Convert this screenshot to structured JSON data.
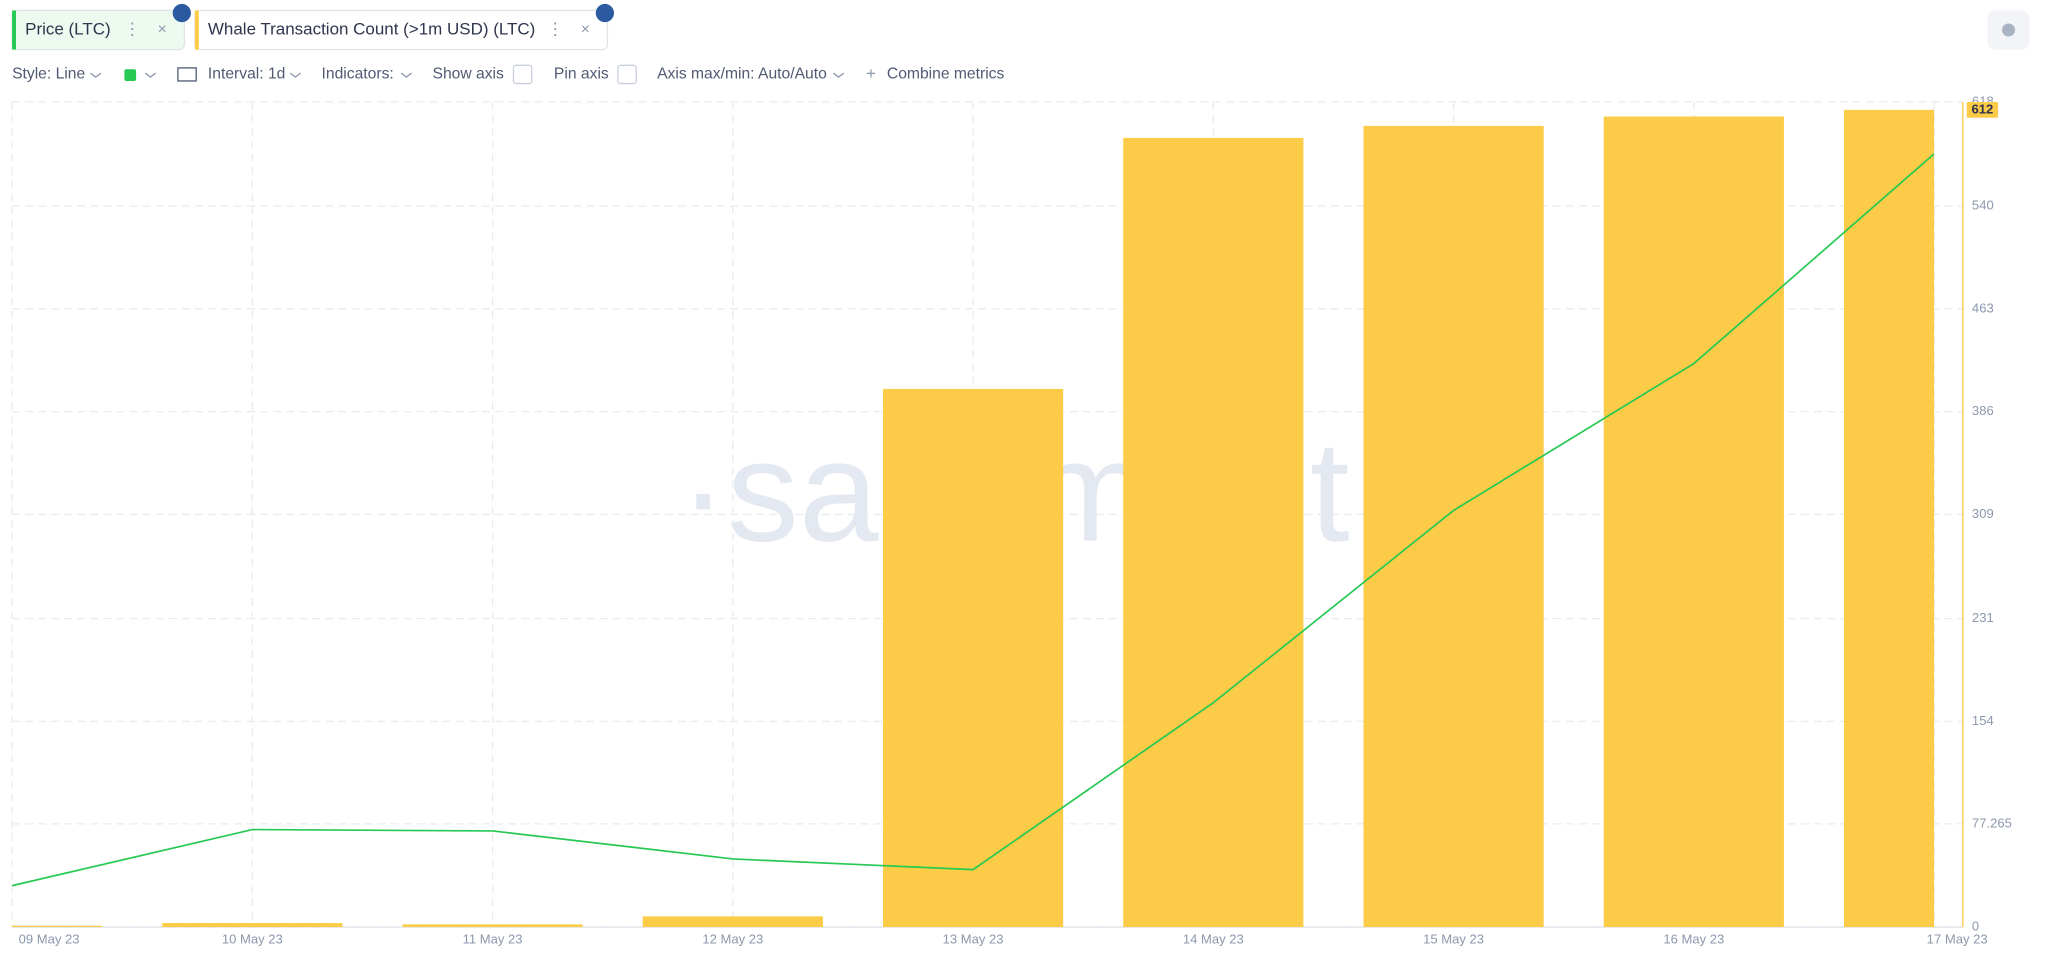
{
  "toolbar": [
    "Style: Line",
    "Interval: 1d",
    "Indicators:",
    "Show axis",
    "Pin axis",
    "Axis max/min: Auto/Auto",
    "Combine metrics"
  ],
  "watermark": "·santiment·",
  "chart_data": {
    "type": "combo",
    "categories": [
      "09 May 23",
      "10 May 23",
      "11 May 23",
      "12 May 23",
      "13 May 23",
      "14 May 23",
      "15 May 23",
      "16 May 23",
      "17 May 23"
    ],
    "series": [
      {
        "name": "Price (LTC)",
        "type": "line",
        "color": "#26c953",
        "values": [
          31,
          73,
          72,
          51,
          43,
          168,
          312,
          422,
          579
        ]
      },
      {
        "name": "Whale Transaction Count (>1m USD) (LTC)",
        "type": "bar",
        "color": "#fccb47",
        "values": [
          1,
          3,
          2,
          8,
          403,
          591,
          600,
          607,
          612
        ]
      }
    ],
    "ylim": [
      0,
      618
    ],
    "yticks": [
      0,
      77.265,
      154,
      231,
      309,
      386,
      463,
      540,
      618
    ],
    "grid": true
  }
}
